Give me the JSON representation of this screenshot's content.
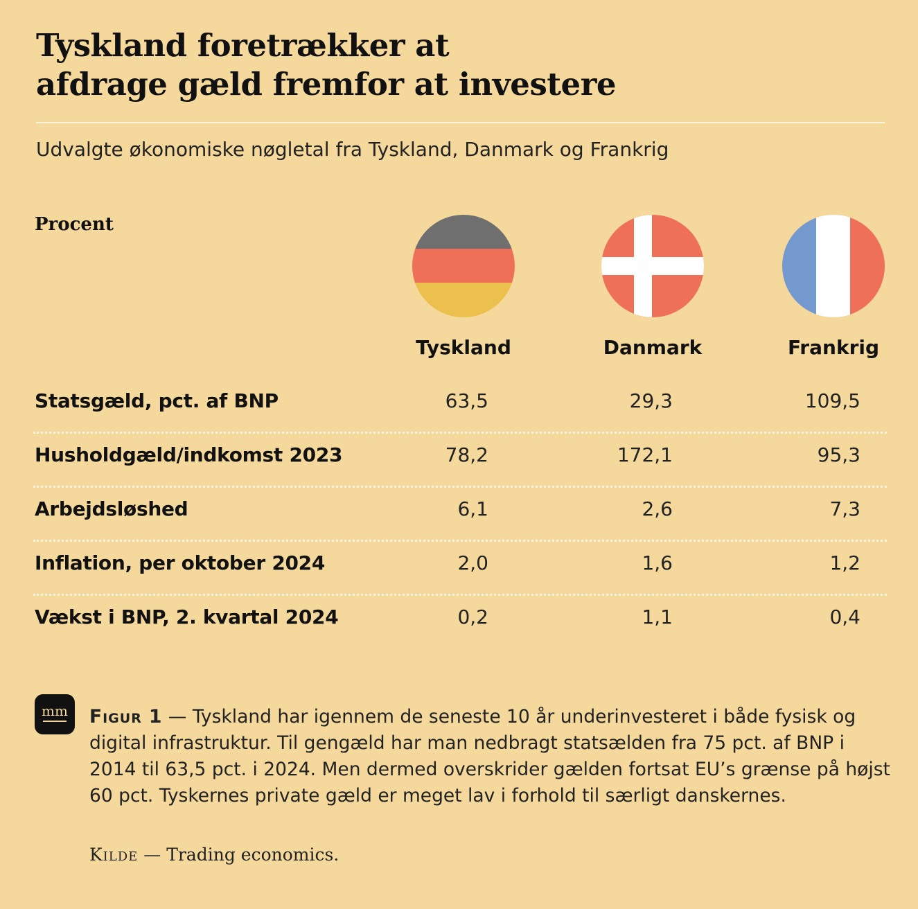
{
  "title_line1": "Tyskland foretrækker at",
  "title_line2": "afdrage gæld fremfor at investere",
  "subtitle": "Udvalgte økonomiske nøgletal fra Tyskland, Danmark og Frankrig",
  "unit_label": "Procent",
  "colors": {
    "background": "#f5d89c",
    "germany": [
      "#6f6f6f",
      "#ef7058",
      "#ecc04d"
    ],
    "denmark": [
      "#ef7058",
      "#ffffff"
    ],
    "france": [
      "#7499ce",
      "#ffffff",
      "#ef7058"
    ]
  },
  "chart_data": {
    "type": "table",
    "columns": [
      "Tyskland",
      "Danmark",
      "Frankrig"
    ],
    "rows": [
      {
        "label": "Statsgæld, pct. af BNP",
        "values": [
          "63,5",
          "29,3",
          "109,5"
        ]
      },
      {
        "label": "Husholdgæld/indkomst 2023",
        "values": [
          "78,2",
          "172,1",
          "95,3"
        ]
      },
      {
        "label": "Arbejdsløshed",
        "values": [
          "6,1",
          "2,6",
          "7,3"
        ]
      },
      {
        "label": "Inflation, per oktober 2024",
        "values": [
          "2,0",
          "1,6",
          "1,2"
        ]
      },
      {
        "label": "Vækst i BNP, 2. kvartal 2024",
        "values": [
          "0,2",
          "1,1",
          "0,4"
        ]
      }
    ]
  },
  "caption": {
    "figure_label": "Figur 1",
    "separator": " — ",
    "text": "Tyskland har igennem de seneste 10 år underinvesteret i både fysisk og digital infrastruktur. Til gengæld har man nedbragt statsælden fra 75 pct. af BNP i 2014 til 63,5 pct. i 2024. Men dermed overskrider gælden fortsat EU’s grænse på højst 60 pct. Tyskernes private gæld er meget lav i forhold til særligt danskernes."
  },
  "source": {
    "label": "Kilde",
    "separator": " — ",
    "text": "Trading economics."
  },
  "logo_text": "mm"
}
